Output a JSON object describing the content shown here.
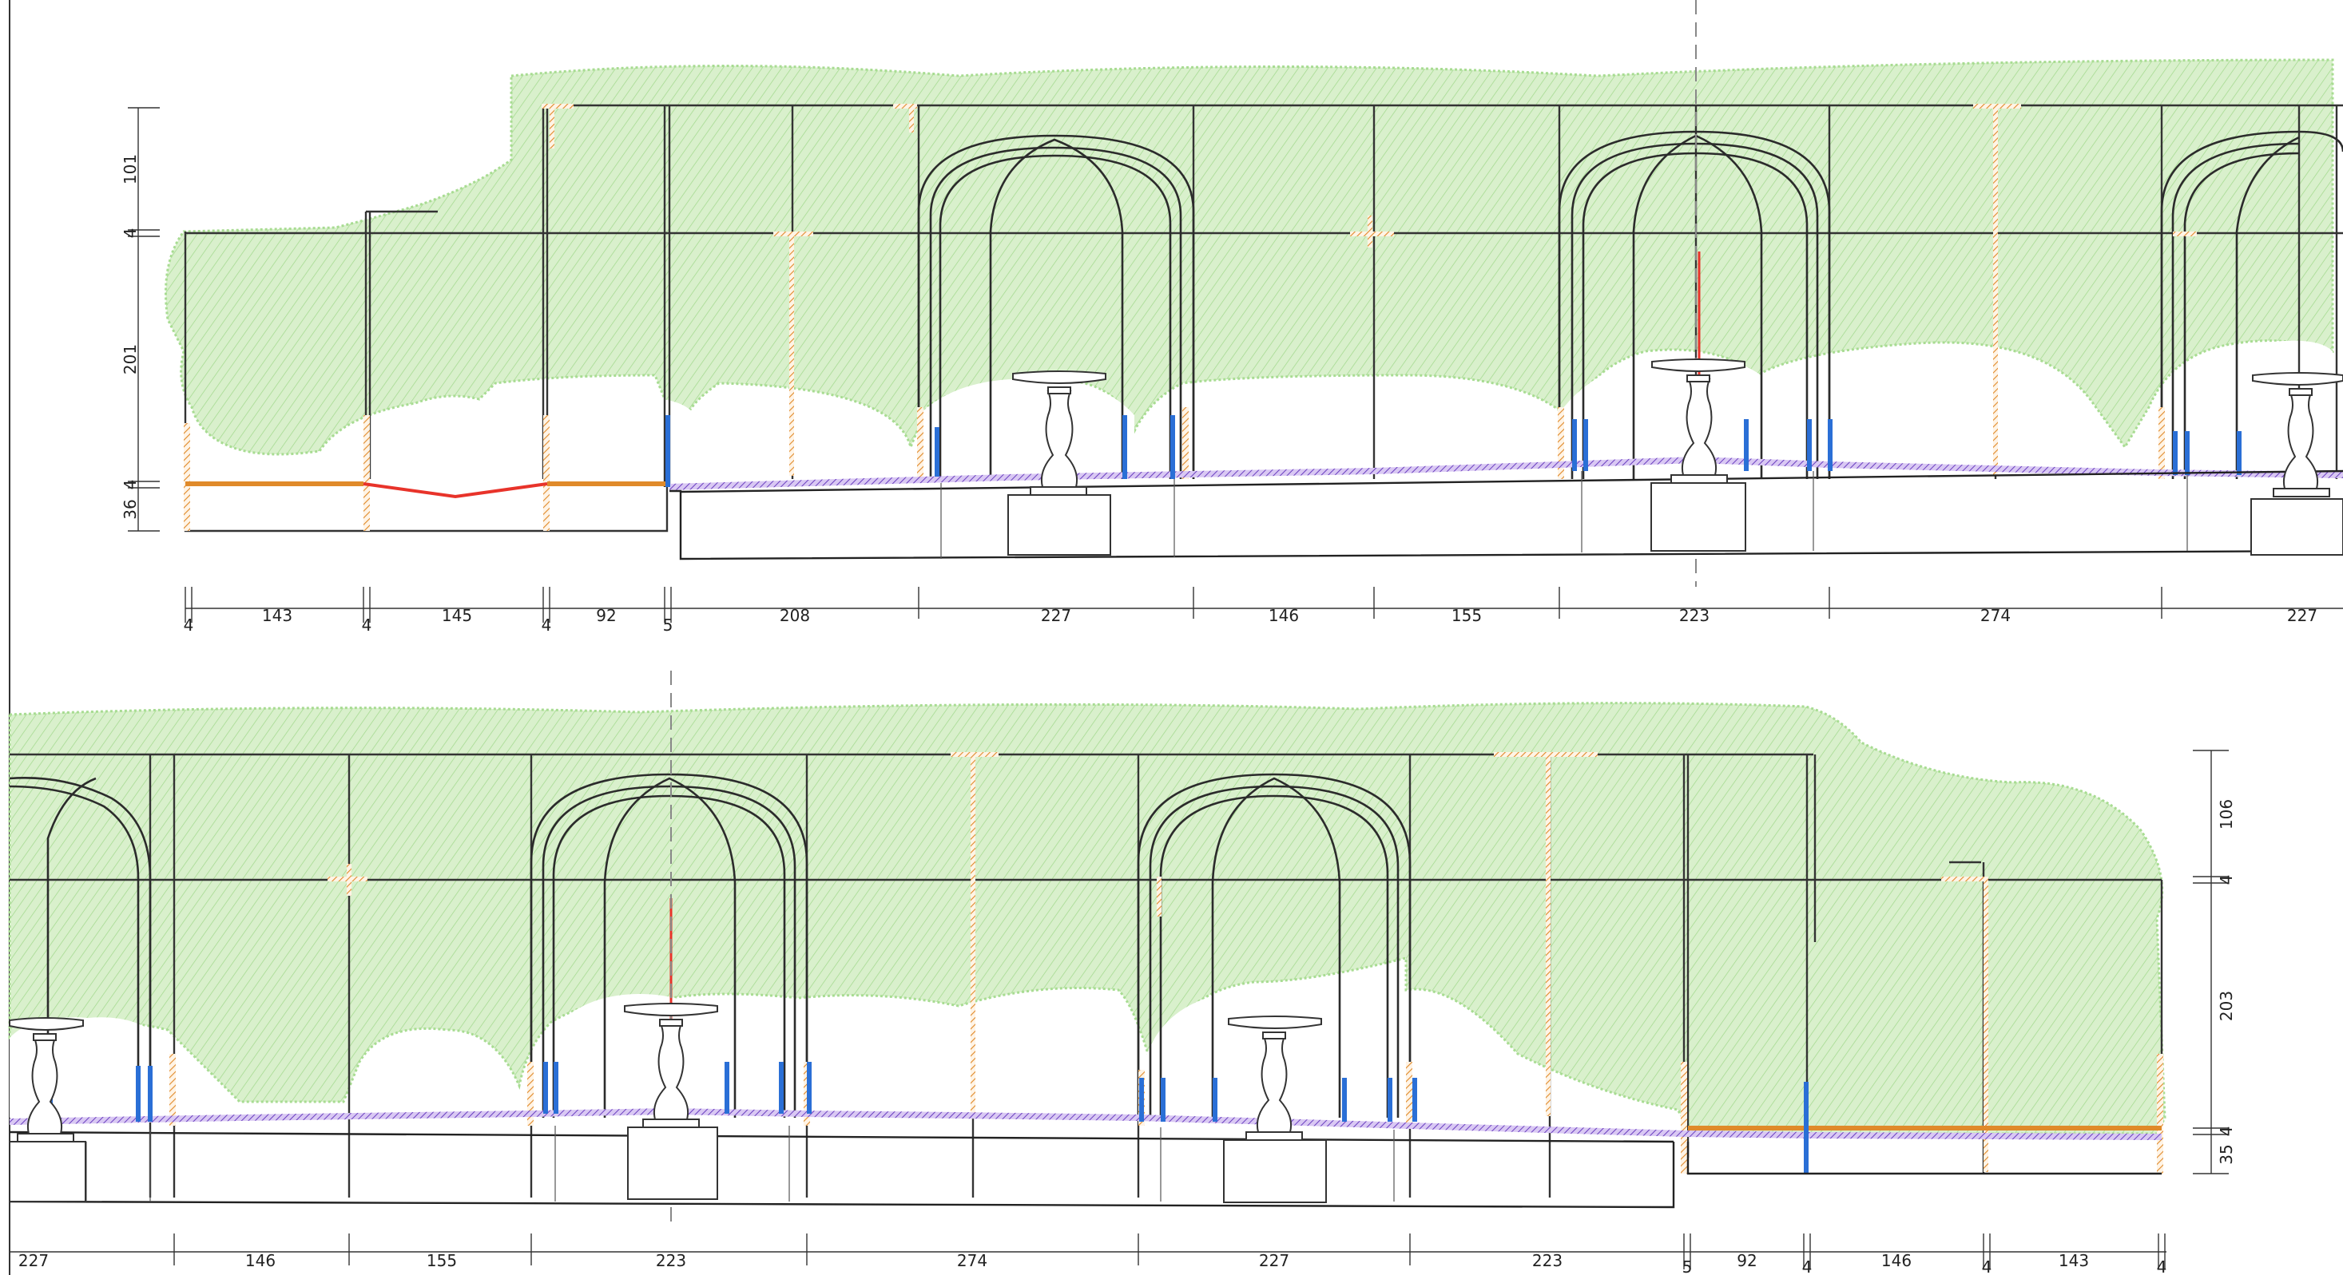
{
  "drawing": {
    "title": "",
    "colors": {
      "foliage": "#b9e3a6",
      "foliage_hatch": "#8ccf74",
      "frame": "#333333",
      "timber_post": "#e08a2a",
      "blue_post": "#2a6fd6",
      "red_line": "#e8332a",
      "purple_rail": "#7a4fc9",
      "centerline": "#888888"
    }
  },
  "top_elevation": {
    "horizontal_dims": [
      {
        "label": "4"
      },
      {
        "label": "143"
      },
      {
        "label": "4"
      },
      {
        "label": "145"
      },
      {
        "label": "4"
      },
      {
        "label": "92"
      },
      {
        "label": "5"
      },
      {
        "label": "208"
      },
      {
        "label": "227"
      },
      {
        "label": "146"
      },
      {
        "label": "155"
      },
      {
        "label": "223"
      },
      {
        "label": "274"
      },
      {
        "label": "227"
      }
    ],
    "vertical_dims": [
      {
        "label": "101"
      },
      {
        "label": "4"
      },
      {
        "label": "201"
      },
      {
        "label": "4"
      },
      {
        "label": "36"
      }
    ]
  },
  "bottom_elevation": {
    "horizontal_dims": [
      {
        "label": "227"
      },
      {
        "label": "146"
      },
      {
        "label": "155"
      },
      {
        "label": "223"
      },
      {
        "label": "274"
      },
      {
        "label": "227"
      },
      {
        "label": "223"
      },
      {
        "label": "5"
      },
      {
        "label": "92"
      },
      {
        "label": "4"
      },
      {
        "label": "146"
      },
      {
        "label": "4"
      },
      {
        "label": "143"
      },
      {
        "label": "4"
      }
    ],
    "vertical_dims": [
      {
        "label": "106"
      },
      {
        "label": "4"
      },
      {
        "label": "203"
      },
      {
        "label": "4"
      },
      {
        "label": "35"
      }
    ]
  }
}
